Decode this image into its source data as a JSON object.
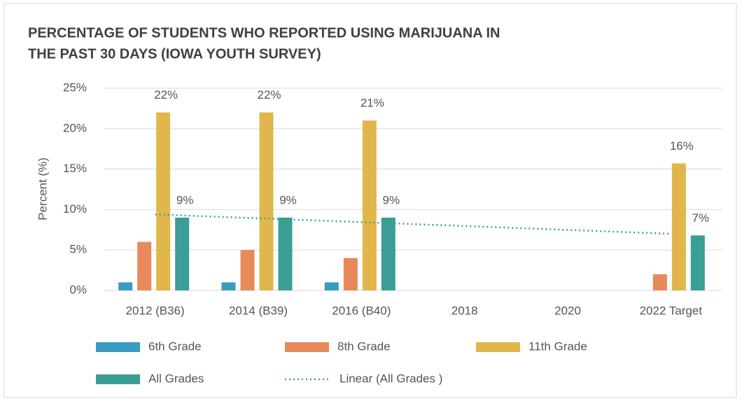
{
  "chart_data": {
    "type": "bar",
    "title": [
      "PERCENTAGE OF STUDENTS WHO REPORTED USING MARIJUANA IN",
      "THE PAST 30 DAYS (IOWA YOUTH SURVEY)"
    ],
    "ylabel": "Percent (%)",
    "categories": [
      "2012 (B36)",
      "2014 (B39)",
      "2016 (B40)",
      "2018",
      "2020",
      "2022 Target"
    ],
    "series": [
      {
        "name": "6th Grade",
        "color": "#3a9bc1",
        "values": [
          1,
          1,
          1,
          null,
          null,
          null
        ]
      },
      {
        "name": "8th Grade",
        "color": "#e8895a",
        "values": [
          6,
          5,
          4,
          null,
          null,
          2
        ]
      },
      {
        "name": "11th Grade",
        "color": "#e1b74c",
        "values": [
          22,
          22,
          21,
          null,
          null,
          15.7
        ],
        "value_labels": [
          "22%",
          "22%",
          "21%",
          null,
          null,
          "16%"
        ]
      },
      {
        "name": "All Grades",
        "color": "#3a9e95",
        "values": [
          9,
          9,
          9,
          null,
          null,
          6.8
        ],
        "value_labels": [
          "9%",
          "9%",
          "9%",
          null,
          null,
          "7%"
        ]
      },
      {
        "name": "Linear (All Grades )",
        "color": "#3a9e95",
        "type": "line",
        "dash": "dotted",
        "values": [
          9.4,
          8.92,
          8.44,
          7.96,
          7.48,
          7.0
        ]
      }
    ],
    "ylim": [
      0,
      25
    ],
    "yticks": [
      {
        "value": 0,
        "label": "0%"
      },
      {
        "value": 5,
        "label": "5%"
      },
      {
        "value": 10,
        "label": "10%"
      },
      {
        "value": 15,
        "label": "15%"
      },
      {
        "value": 20,
        "label": "20%"
      },
      {
        "value": 25,
        "label": "25%"
      }
    ],
    "grid": true,
    "legend": "bottom"
  }
}
